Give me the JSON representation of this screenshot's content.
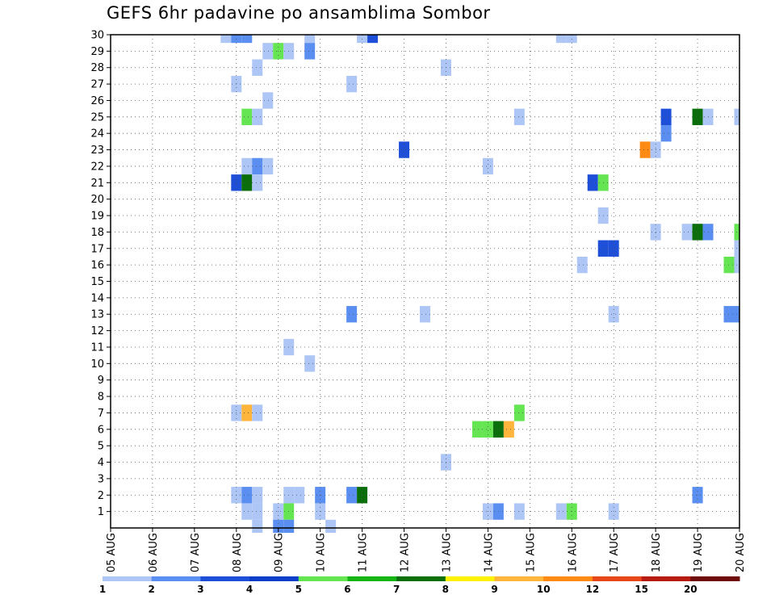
{
  "title": "GEFS 6hr padavine po ansamblima Sombor",
  "chart_data": {
    "type": "heatmap",
    "title": "GEFS 6hr padavine po ansamblima Sombor",
    "xlabel": "",
    "ylabel": "",
    "x_ticks": [
      "05 AUG",
      "06 AUG",
      "07 AUG",
      "08 AUG",
      "09 AUG",
      "10 AUG",
      "11 AUG",
      "12 AUG",
      "13 AUG",
      "14 AUG",
      "15 AUG",
      "16 AUG",
      "17 AUG",
      "18 AUG",
      "19 AUG",
      "20 AUG"
    ],
    "xlim": [
      0,
      15
    ],
    "y_ticks": [
      1,
      2,
      3,
      4,
      5,
      6,
      7,
      8,
      9,
      10,
      11,
      12,
      13,
      14,
      15,
      16,
      17,
      18,
      19,
      20,
      21,
      22,
      23,
      24,
      25,
      26,
      27,
      28,
      29,
      30
    ],
    "ylim": [
      0,
      30
    ],
    "grid": true,
    "legend_position": "bottom",
    "colorbar": {
      "labels": [
        "1",
        "2",
        "3",
        "4",
        "5",
        "6",
        "7",
        "8",
        "9",
        "10",
        "12",
        "15",
        "20"
      ],
      "colors": [
        "#aec6f5",
        "#5a8ef0",
        "#1e4fd8",
        "#0a3ec8",
        "#66e552",
        "#14b514",
        "#0a6e0a",
        "#fff200",
        "#ffb43c",
        "#ff8a14",
        "#e8471a",
        "#b81b10",
        "#6e0a0a"
      ]
    },
    "cells": [
      {
        "t": 2.75,
        "m": 30,
        "v": 1.5
      },
      {
        "t": 3.0,
        "m": 30,
        "v": 2.5
      },
      {
        "t": 3.25,
        "m": 30,
        "v": 2.5
      },
      {
        "t": 4.75,
        "m": 30,
        "v": 1.5
      },
      {
        "t": 6.0,
        "m": 30,
        "v": 1.5
      },
      {
        "t": 6.25,
        "m": 30,
        "v": 3.5
      },
      {
        "t": 10.75,
        "m": 30,
        "v": 1.5
      },
      {
        "t": 11.0,
        "m": 30,
        "v": 1.5
      },
      {
        "t": 3.75,
        "m": 29,
        "v": 1.5
      },
      {
        "t": 4.0,
        "m": 29,
        "v": 5.5
      },
      {
        "t": 4.25,
        "m": 29,
        "v": 1.5
      },
      {
        "t": 4.75,
        "m": 29,
        "v": 2.5
      },
      {
        "t": 3.5,
        "m": 28,
        "v": 1.5
      },
      {
        "t": 8.0,
        "m": 28,
        "v": 1.5
      },
      {
        "t": 3.0,
        "m": 27,
        "v": 1.5
      },
      {
        "t": 5.75,
        "m": 27,
        "v": 1.5
      },
      {
        "t": 3.75,
        "m": 26,
        "v": 1.5
      },
      {
        "t": 3.25,
        "m": 25,
        "v": 5.5
      },
      {
        "t": 3.5,
        "m": 25,
        "v": 1.5
      },
      {
        "t": 9.75,
        "m": 25,
        "v": 1.5
      },
      {
        "t": 13.25,
        "m": 25,
        "v": 3.5
      },
      {
        "t": 14.0,
        "m": 25,
        "v": 7.5
      },
      {
        "t": 14.25,
        "m": 25,
        "v": 1.5
      },
      {
        "t": 15.0,
        "m": 25,
        "v": 1.5
      },
      {
        "t": 13.25,
        "m": 24,
        "v": 2.5
      },
      {
        "t": 7.0,
        "m": 23,
        "v": 3.5
      },
      {
        "t": 12.75,
        "m": 23,
        "v": 10.5
      },
      {
        "t": 13.0,
        "m": 23,
        "v": 1.5
      },
      {
        "t": 3.25,
        "m": 22,
        "v": 1.5
      },
      {
        "t": 3.5,
        "m": 22,
        "v": 2.5
      },
      {
        "t": 3.75,
        "m": 22,
        "v": 1.5
      },
      {
        "t": 9.0,
        "m": 22,
        "v": 1.5
      },
      {
        "t": 3.0,
        "m": 21,
        "v": 3.5
      },
      {
        "t": 3.25,
        "m": 21,
        "v": 7.5
      },
      {
        "t": 3.5,
        "m": 21,
        "v": 1.5
      },
      {
        "t": 11.5,
        "m": 21,
        "v": 3.5
      },
      {
        "t": 11.75,
        "m": 21,
        "v": 5.0
      },
      {
        "t": 11.75,
        "m": 19,
        "v": 1.5
      },
      {
        "t": 13.0,
        "m": 18,
        "v": 1.5
      },
      {
        "t": 13.75,
        "m": 18,
        "v": 1.5
      },
      {
        "t": 14.0,
        "m": 18,
        "v": 7.5
      },
      {
        "t": 14.25,
        "m": 18,
        "v": 2.5
      },
      {
        "t": 15.0,
        "m": 18,
        "v": 5.5
      },
      {
        "t": 11.75,
        "m": 17,
        "v": 3.5
      },
      {
        "t": 12.0,
        "m": 17,
        "v": 3.5
      },
      {
        "t": 15.0,
        "m": 17,
        "v": 1.5
      },
      {
        "t": 11.25,
        "m": 16,
        "v": 1.5
      },
      {
        "t": 14.75,
        "m": 16,
        "v": 5.5
      },
      {
        "t": 15.0,
        "m": 16,
        "v": 1.5
      },
      {
        "t": 5.75,
        "m": 13,
        "v": 2.5
      },
      {
        "t": 7.5,
        "m": 13,
        "v": 1.5
      },
      {
        "t": 12.0,
        "m": 13,
        "v": 1.5
      },
      {
        "t": 14.75,
        "m": 13,
        "v": 2.5
      },
      {
        "t": 15.0,
        "m": 13,
        "v": 2.5
      },
      {
        "t": 4.25,
        "m": 11,
        "v": 1.5
      },
      {
        "t": 4.75,
        "m": 10,
        "v": 1.5
      },
      {
        "t": 3.0,
        "m": 7,
        "v": 1.5
      },
      {
        "t": 3.25,
        "m": 7,
        "v": 9.5
      },
      {
        "t": 3.5,
        "m": 7,
        "v": 1.5
      },
      {
        "t": 9.75,
        "m": 7,
        "v": 5.0
      },
      {
        "t": 8.75,
        "m": 6,
        "v": 5.0
      },
      {
        "t": 9.0,
        "m": 6,
        "v": 5.0
      },
      {
        "t": 9.25,
        "m": 6,
        "v": 7.0
      },
      {
        "t": 9.5,
        "m": 6,
        "v": 9.5
      },
      {
        "t": 8.0,
        "m": 4,
        "v": 1.5
      },
      {
        "t": 3.0,
        "m": 2,
        "v": 1.5
      },
      {
        "t": 3.25,
        "m": 2,
        "v": 2.5
      },
      {
        "t": 3.5,
        "m": 2,
        "v": 1.5
      },
      {
        "t": 4.25,
        "m": 2,
        "v": 1.5
      },
      {
        "t": 4.5,
        "m": 2,
        "v": 1.5
      },
      {
        "t": 5.0,
        "m": 2,
        "v": 2.5
      },
      {
        "t": 5.75,
        "m": 2,
        "v": 2.5
      },
      {
        "t": 6.0,
        "m": 2,
        "v": 7.5
      },
      {
        "t": 14.0,
        "m": 2,
        "v": 2.5
      },
      {
        "t": 3.25,
        "m": 1,
        "v": 1.5
      },
      {
        "t": 3.5,
        "m": 1,
        "v": 1.5
      },
      {
        "t": 4.0,
        "m": 1,
        "v": 1.5
      },
      {
        "t": 4.25,
        "m": 1,
        "v": 5.0
      },
      {
        "t": 5.0,
        "m": 1,
        "v": 1.5
      },
      {
        "t": 9.0,
        "m": 1,
        "v": 1.5
      },
      {
        "t": 9.25,
        "m": 1,
        "v": 2.5
      },
      {
        "t": 9.75,
        "m": 1,
        "v": 1.5
      },
      {
        "t": 10.75,
        "m": 1,
        "v": 1.5
      },
      {
        "t": 11.0,
        "m": 1,
        "v": 5.5
      },
      {
        "t": 12.0,
        "m": 1,
        "v": 1.5
      },
      {
        "t": 3.5,
        "m": 0,
        "v": 1.5
      },
      {
        "t": 4.0,
        "m": 0,
        "v": 2.5
      },
      {
        "t": 4.25,
        "m": 0,
        "v": 2.5
      },
      {
        "t": 5.25,
        "m": 0,
        "v": 1.5
      }
    ]
  }
}
